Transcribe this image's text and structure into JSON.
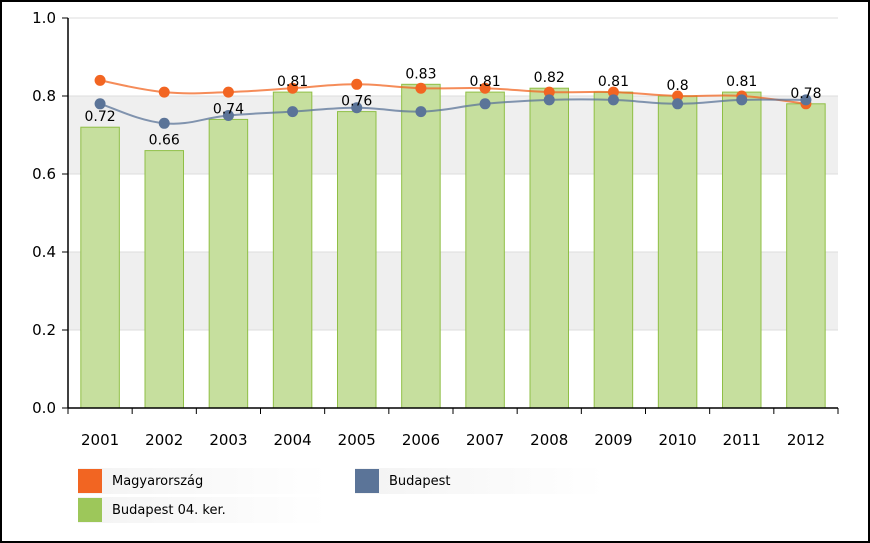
{
  "chart_data": {
    "type": "bar",
    "title": "",
    "xlabel": "",
    "ylabel": "",
    "ylim": [
      0,
      1.0
    ],
    "yticks": [
      "0.0",
      "0.2",
      "0.4",
      "0.6",
      "0.8",
      "1.0"
    ],
    "categories": [
      "2001",
      "2002",
      "2003",
      "2004",
      "2005",
      "2006",
      "2007",
      "2008",
      "2009",
      "2010",
      "2011",
      "2012"
    ],
    "grid": "alternating horizontal bands",
    "legend_position": "bottom",
    "bar_series": {
      "name": "Budapest 04. ker.",
      "color": "#9dc75a",
      "values": [
        0.72,
        0.66,
        0.74,
        0.81,
        0.76,
        0.83,
        0.81,
        0.82,
        0.81,
        0.8,
        0.81,
        0.78
      ],
      "labels": [
        "0.72",
        "0.66",
        "0.74",
        "0.81",
        "0.76",
        "0.83",
        "0.81",
        "0.82",
        "0.81",
        "0.8",
        "0.81",
        "0.78"
      ]
    },
    "line_series": [
      {
        "name": "Magyarország",
        "color": "#f26522",
        "values": [
          0.84,
          0.81,
          0.81,
          0.82,
          0.83,
          0.82,
          0.82,
          0.81,
          0.81,
          0.8,
          0.8,
          0.78
        ]
      },
      {
        "name": "Budapest",
        "color": "#5b7498",
        "values": [
          0.78,
          0.73,
          0.75,
          0.76,
          0.77,
          0.76,
          0.78,
          0.79,
          0.79,
          0.78,
          0.79,
          0.79
        ]
      }
    ]
  },
  "legend": [
    {
      "label": "Magyarország",
      "color": "#f26522"
    },
    {
      "label": "Budapest",
      "color": "#5b7498"
    },
    {
      "label": "Budapest 04. ker.",
      "color": "#9dc75a"
    }
  ]
}
